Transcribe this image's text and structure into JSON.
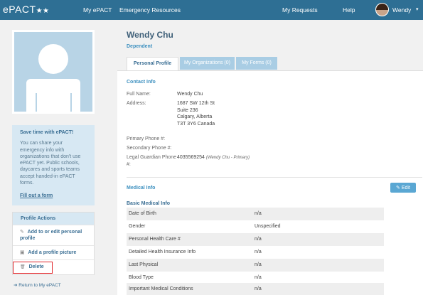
{
  "topbar": {
    "logo": "ePACT",
    "logo_stars": "★★",
    "nav": [
      "My ePACT",
      "Emergency Resources",
      "My Requests",
      "Help"
    ],
    "user": "Wendy",
    "caret": "▾"
  },
  "sidebar": {
    "save_box": {
      "title": "Save time with ePACT!",
      "body": "You can share your emergency info with organizations that don't use ePACT yet. Public schools, daycares and sports teams accept handed-in ePACT forms.",
      "link": "Fill out a form"
    },
    "profile_actions": {
      "header": "Profile Actions",
      "items": [
        {
          "icon": "edit-icon",
          "glyph": "✎",
          "label": "Add to or edit personal profile"
        },
        {
          "icon": "image-icon",
          "glyph": "▣",
          "label": "Add a profile picture"
        },
        {
          "icon": "trash-icon",
          "glyph": "🗑",
          "label": "Delete"
        }
      ]
    },
    "return_link": "Return to My ePACT",
    "return_icon": "➜"
  },
  "profile": {
    "name": "Wendy Chu",
    "role": "Dependent",
    "tabs": [
      "Personal Profile",
      "My Organizations (0)",
      "My Forms (0)"
    ],
    "active_tab": 0
  },
  "contact": {
    "title": "Contact Info",
    "fields": [
      {
        "label": "Full Name:",
        "value": "Wendy Chu"
      },
      {
        "label": "Address:",
        "value_lines": [
          "1687 SW 12th St",
          "Suite 236",
          "Calgary, Alberta",
          "T3T 3Y6 Canada"
        ]
      },
      {
        "label": "Primary Phone #:",
        "value": ""
      },
      {
        "label": "Secondary Phone #:",
        "value": ""
      },
      {
        "label_lines": [
          "Legal Guardian Phone",
          "#:"
        ],
        "value": "4035569254",
        "note": "(Wendy Chu - Primary)"
      }
    ]
  },
  "medical": {
    "title": "Medical Info",
    "edit_label": "Edit",
    "edit_icon": "✎",
    "basic_title": "Basic Medical Info",
    "rows": [
      {
        "key": "Date of Birth",
        "value": "n/a"
      },
      {
        "key": "Gender",
        "value": "Unspecified"
      },
      {
        "key": "Personal Health Care #",
        "value": "n/a"
      },
      {
        "key": "Detailed Health Insurance Info",
        "value": "n/a"
      },
      {
        "key": "Last Physical",
        "value": "n/a"
      },
      {
        "key": "Blood Type",
        "value": "n/a"
      },
      {
        "key": "Important Medical Conditions",
        "value": "n/a"
      }
    ]
  },
  "colors": {
    "topbar": "#2e6f94",
    "accent": "#3b8fbf",
    "tab_inactive": "#a9cde4",
    "highlight": "#e0262a"
  }
}
